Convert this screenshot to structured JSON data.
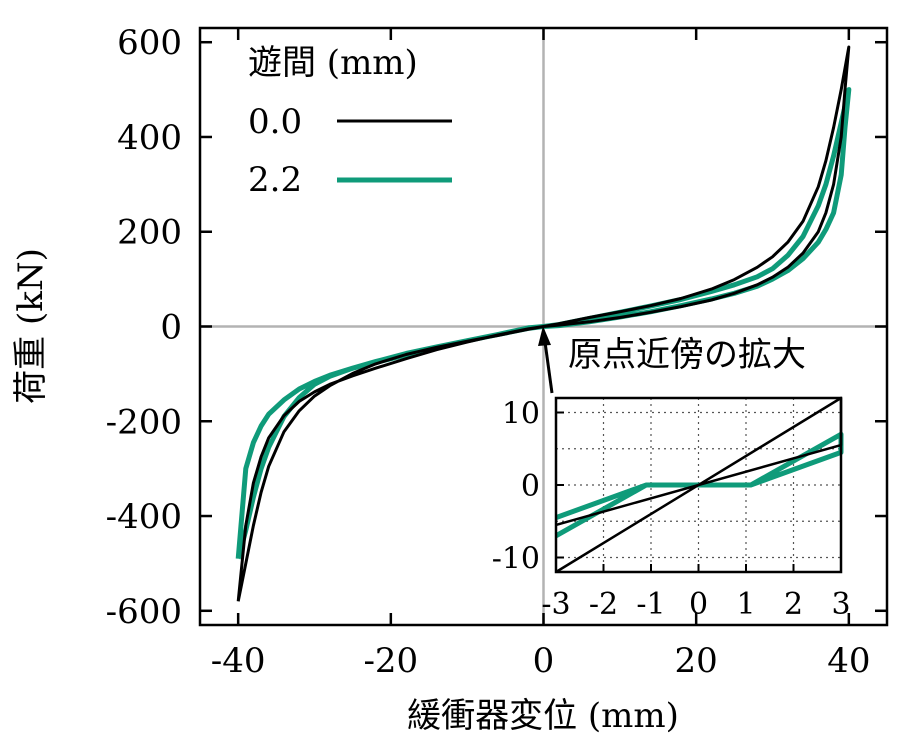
{
  "chart_data": [
    {
      "type": "line",
      "xlabel": "緩衝器変位 (mm)",
      "ylabel": "荷重 (kN)",
      "xlim": [
        -45,
        45
      ],
      "ylim": [
        -630,
        630
      ],
      "xticks": [
        "-40",
        "-20",
        "0",
        "20",
        "40"
      ],
      "yticks": [
        "-600",
        "-400",
        "-200",
        "0",
        "200",
        "400",
        "600"
      ],
      "legend_title": "遊間 (mm)",
      "legend_position": "top-left",
      "grid": false,
      "series": [
        {
          "name": "0.0",
          "color": "#000000",
          "x": [
            -40,
            -39,
            -38,
            -37,
            -36,
            -34,
            -32,
            -30,
            -28,
            -25,
            -22,
            -18,
            -14,
            -10,
            -6,
            -2,
            0,
            2,
            6,
            10,
            14,
            18,
            22,
            25,
            28,
            30,
            32,
            34,
            36,
            37,
            38,
            39,
            40,
            39.5,
            39,
            38,
            37,
            36,
            34,
            32,
            30,
            28,
            25,
            22,
            18,
            14,
            10,
            6,
            2,
            0,
            -2,
            -6,
            -10,
            -14,
            -18,
            -22,
            -25,
            -28,
            -30,
            -32,
            -34,
            -36,
            -37,
            -38,
            -39,
            -39.5,
            -40
          ],
          "y": [
            -580,
            -420,
            -330,
            -275,
            -235,
            -188,
            -158,
            -138,
            -122,
            -104,
            -88,
            -68,
            -49,
            -33,
            -18,
            -5,
            0,
            6,
            19,
            31,
            44,
            59,
            79,
            99,
            125,
            147,
            178,
            222,
            295,
            350,
            420,
            500,
            590,
            500,
            400,
            300,
            240,
            200,
            155,
            125,
            104,
            88,
            70,
            56,
            42,
            30,
            19,
            10,
            3,
            0,
            -6,
            -19,
            -31,
            -44,
            -59,
            -79,
            -99,
            -125,
            -147,
            -178,
            -222,
            -295,
            -350,
            -420,
            -500,
            -540,
            -580
          ]
        },
        {
          "name": "2.2",
          "color": "#0f9b7a",
          "x": [
            -40,
            -39,
            -38,
            -37,
            -36,
            -34,
            -32,
            -30,
            -28,
            -25,
            -22,
            -18,
            -14,
            -10,
            -6,
            -2,
            0,
            2,
            6,
            10,
            14,
            18,
            22,
            25,
            28,
            30,
            32,
            34,
            36,
            37,
            38,
            39,
            40,
            39.5,
            39,
            38,
            37,
            36,
            34,
            32,
            30,
            28,
            25,
            22,
            18,
            14,
            10,
            6,
            2,
            0,
            -2,
            -6,
            -10,
            -14,
            -18,
            -22,
            -25,
            -28,
            -30,
            -32,
            -34,
            -36,
            -37,
            -38,
            -39,
            -39.5,
            -40
          ],
          "y": [
            -490,
            -300,
            -245,
            -210,
            -185,
            -155,
            -132,
            -116,
            -103,
            -88,
            -76,
            -60,
            -44,
            -30,
            -17,
            -3,
            0,
            4,
            17,
            30,
            43,
            57,
            74,
            88,
            105,
            122,
            150,
            190,
            255,
            300,
            360,
            430,
            500,
            420,
            320,
            240,
            205,
            178,
            143,
            118,
            100,
            85,
            70,
            58,
            44,
            31,
            20,
            10,
            2,
            0,
            -4,
            -17,
            -30,
            -43,
            -57,
            -74,
            -88,
            -105,
            -122,
            -150,
            -190,
            -255,
            -300,
            -360,
            -430,
            -460,
            -490
          ]
        }
      ]
    },
    {
      "type": "line",
      "title": "原点近傍の拡大",
      "xlim": [
        -3,
        3
      ],
      "ylim": [
        -12,
        12
      ],
      "xticks": [
        "-3",
        "-2",
        "-1",
        "0",
        "1",
        "2",
        "3"
      ],
      "yticks": [
        "-10",
        "0",
        "10"
      ],
      "grid": true,
      "series": [
        {
          "name": "0.0",
          "color": "#000000",
          "x": [
            -3,
            3,
            3,
            -3
          ],
          "y": [
            -12,
            12,
            5.5,
            -5.5
          ]
        },
        {
          "name": "2.2",
          "color": "#0f9b7a",
          "x": [
            -3,
            -1.1,
            1.1,
            3,
            3,
            1.1,
            -1.1,
            -3
          ],
          "y": [
            -4.5,
            0,
            0,
            4.5,
            7,
            0,
            0,
            -7
          ]
        }
      ]
    }
  ]
}
